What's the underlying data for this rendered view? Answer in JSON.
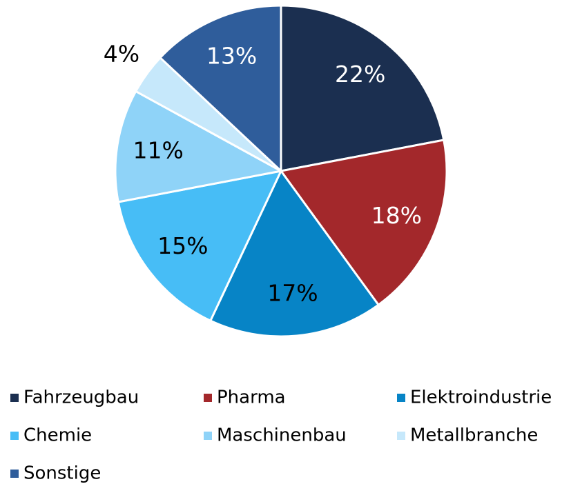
{
  "chart_data": {
    "type": "pie",
    "categories": [
      "Fahrzeugbau",
      "Pharma",
      "Elektroindustrie",
      "Chemie",
      "Maschinenbau",
      "Metallbranche",
      "Sonstige"
    ],
    "values": [
      22,
      18,
      17,
      15,
      11,
      4,
      13
    ],
    "value_labels": [
      "22%",
      "18%",
      "17%",
      "15%",
      "11%",
      "4%",
      "13%"
    ],
    "colors": [
      "#1b2f50",
      "#a3282b",
      "#0784c6",
      "#47bdf6",
      "#8fd3f8",
      "#c6e8fb",
      "#2f5d9b"
    ],
    "legend": "bottom"
  }
}
